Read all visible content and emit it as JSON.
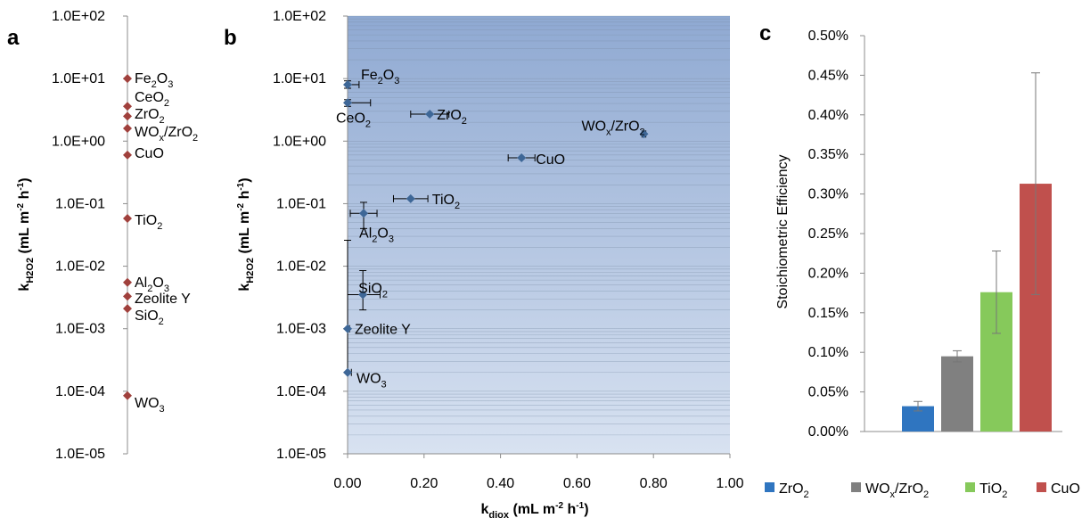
{
  "chart_data": [
    {
      "panel": "a",
      "type": "scatter",
      "y_scale": "log",
      "ylim": [
        1e-05,
        100
      ],
      "y_ticks": [
        "1.0E+02",
        "1.0E+01",
        "1.0E+00",
        "1.0E-01",
        "1.0E-02",
        "1.0E-03",
        "1.0E-04",
        "1.0E-05"
      ],
      "ylabel": {
        "base": "k",
        "sub": "H2O2",
        "rest": " (mL m",
        "sup1": "-2",
        "mid": " h",
        "sup2": "-1",
        "end": ")"
      },
      "marker_color": "#a0403c",
      "points": [
        {
          "label": {
            "t": "Fe",
            "s": "2",
            "t2": "O",
            "s2": "3"
          },
          "y": 10
        },
        {
          "label": {
            "t": "CeO",
            "s": "2"
          },
          "y": 3.6
        },
        {
          "label": {
            "t": "ZrO",
            "s": "2"
          },
          "y": 2.5
        },
        {
          "label": {
            "t": "WO",
            "s": "x",
            "t2": "/ZrO",
            "s2": "2"
          },
          "y": 1.6
        },
        {
          "label": {
            "t": "CuO"
          },
          "y": 0.6
        },
        {
          "label": {
            "t": "TiO",
            "s": "2"
          },
          "y": 0.058
        },
        {
          "label": {
            "t": "Al",
            "s": "2",
            "t2": "O",
            "s2": "3"
          },
          "y": 0.0055
        },
        {
          "label": {
            "t": "Zeolite Y"
          },
          "y": 0.0033
        },
        {
          "label": {
            "t": "SiO",
            "s": "2"
          },
          "y": 0.0021
        },
        {
          "label": {
            "t": "WO",
            "s": "3"
          },
          "y": 8.5e-05
        }
      ]
    },
    {
      "panel": "b",
      "type": "scatter",
      "y_scale": "log",
      "xlim": [
        0,
        1
      ],
      "ylim": [
        1e-05,
        100
      ],
      "x_ticks": [
        "0.00",
        "0.20",
        "0.40",
        "0.60",
        "0.80",
        "1.00"
      ],
      "y_ticks": [
        "1.0E+02",
        "1.0E+01",
        "1.0E+00",
        "1.0E-01",
        "1.0E-02",
        "1.0E-03",
        "1.0E-04",
        "1.0E-05"
      ],
      "xlabel": {
        "base": "k",
        "sub": "diox",
        "rest": " (mL m",
        "sup1": "-2",
        "mid": " h",
        "sup2": "-1",
        "end": ")"
      },
      "ylabel": {
        "base": "k",
        "sub": "H2O2",
        "rest": " (mL m",
        "sup1": "-2",
        "mid": " h",
        "sup2": "-1",
        "end": ")"
      },
      "marker_color": "#3e6797",
      "grid": true,
      "points": [
        {
          "label": {
            "t": "Fe",
            "s": "2",
            "t2": "O",
            "s2": "3"
          },
          "x": 0.0,
          "y": 8.0,
          "xerr": 0.03,
          "yerr": [
            7.0,
            9.2
          ]
        },
        {
          "label": {
            "t": "CeO",
            "s": "2"
          },
          "x": 0.0,
          "y": 4.1,
          "xerr": 0.06,
          "yerr": [
            3.6,
            4.6
          ]
        },
        {
          "label": {
            "t": "ZrO",
            "s": "2"
          },
          "x": 0.215,
          "y": 2.7,
          "xerr": 0.05
        },
        {
          "label": {
            "t": "WO",
            "s": "x",
            "t2": "/ZrO",
            "s2": "2"
          },
          "x": 0.775,
          "y": 1.3,
          "xerr": 0.005
        },
        {
          "label": {
            "t": "CuO"
          },
          "x": 0.455,
          "y": 0.54,
          "xerr": 0.035
        },
        {
          "label": {
            "t": "TiO",
            "s": "2"
          },
          "x": 0.165,
          "y": 0.12,
          "xerr": 0.045
        },
        {
          "label": {
            "t": "Al",
            "s": "2",
            "t2": "O",
            "s2": "3"
          },
          "x": 0.042,
          "y": 0.07,
          "xerr": 0.035,
          "yerr": [
            0.04,
            0.105
          ]
        },
        {
          "label": {
            "t": "SiO",
            "s": "2"
          },
          "x": 0.04,
          "y": 0.0035,
          "xerr": 0.045,
          "yerr": [
            0.002,
            0.0085
          ]
        },
        {
          "label": {
            "t": "Zeolite Y"
          },
          "x": 0.0,
          "y": 0.001,
          "xerr": 0.005,
          "yerr": [
            0.0002,
            0.026
          ]
        },
        {
          "label": {
            "t": "WO",
            "s": "3"
          },
          "x": 0.0,
          "y": 0.0002,
          "xerr": 0.01
        }
      ]
    },
    {
      "panel": "c",
      "type": "bar",
      "ylim": [
        0,
        0.005
      ],
      "y_ticks": [
        "0.00%",
        "0.05%",
        "0.10%",
        "0.15%",
        "0.20%",
        "0.25%",
        "0.30%",
        "0.35%",
        "0.40%",
        "0.45%",
        "0.50%"
      ],
      "ylabel": "Stoichiometric Efficiency",
      "series": [
        {
          "legend": {
            "t": "ZrO",
            "s": "2"
          },
          "value": 0.00032,
          "err": 6e-05,
          "color": "#2f75c0"
        },
        {
          "legend": {
            "t": "WO",
            "s": "x",
            "t2": "/ZrO",
            "s2": "2"
          },
          "value": 0.00095,
          "err": 7e-05,
          "color": "#808080"
        },
        {
          "legend": {
            "t": "TiO",
            "s": "2"
          },
          "value": 0.00176,
          "err": 0.00052,
          "color": "#86c95b"
        },
        {
          "legend": {
            "t": "CuO"
          },
          "value": 0.00313,
          "err": 0.0014,
          "color": "#c0504d"
        }
      ]
    }
  ]
}
